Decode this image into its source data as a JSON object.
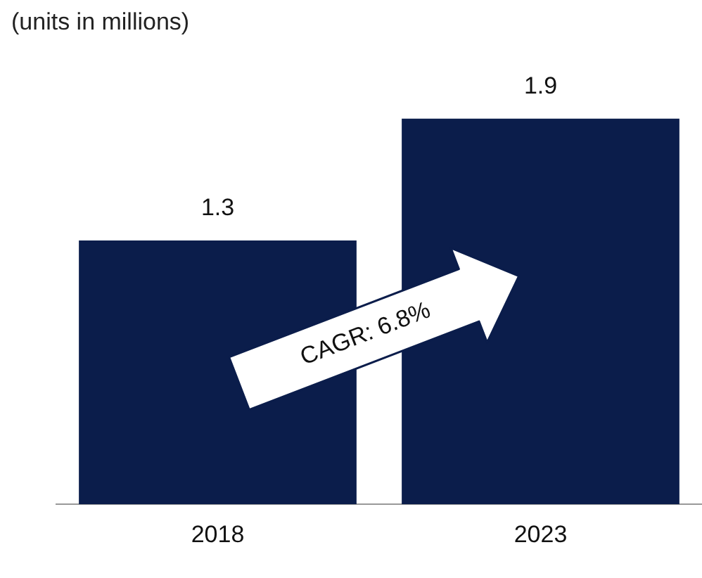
{
  "chart_data": {
    "type": "bar",
    "title": "(units in millions)",
    "categories": [
      "2018",
      "2023"
    ],
    "values": [
      1.3,
      1.9
    ],
    "color": "#0b1d4b",
    "data_labels": true,
    "grid": false,
    "legend": false,
    "tick_labels": "x",
    "annotations": [
      "CAGR: 6.8%"
    ]
  }
}
